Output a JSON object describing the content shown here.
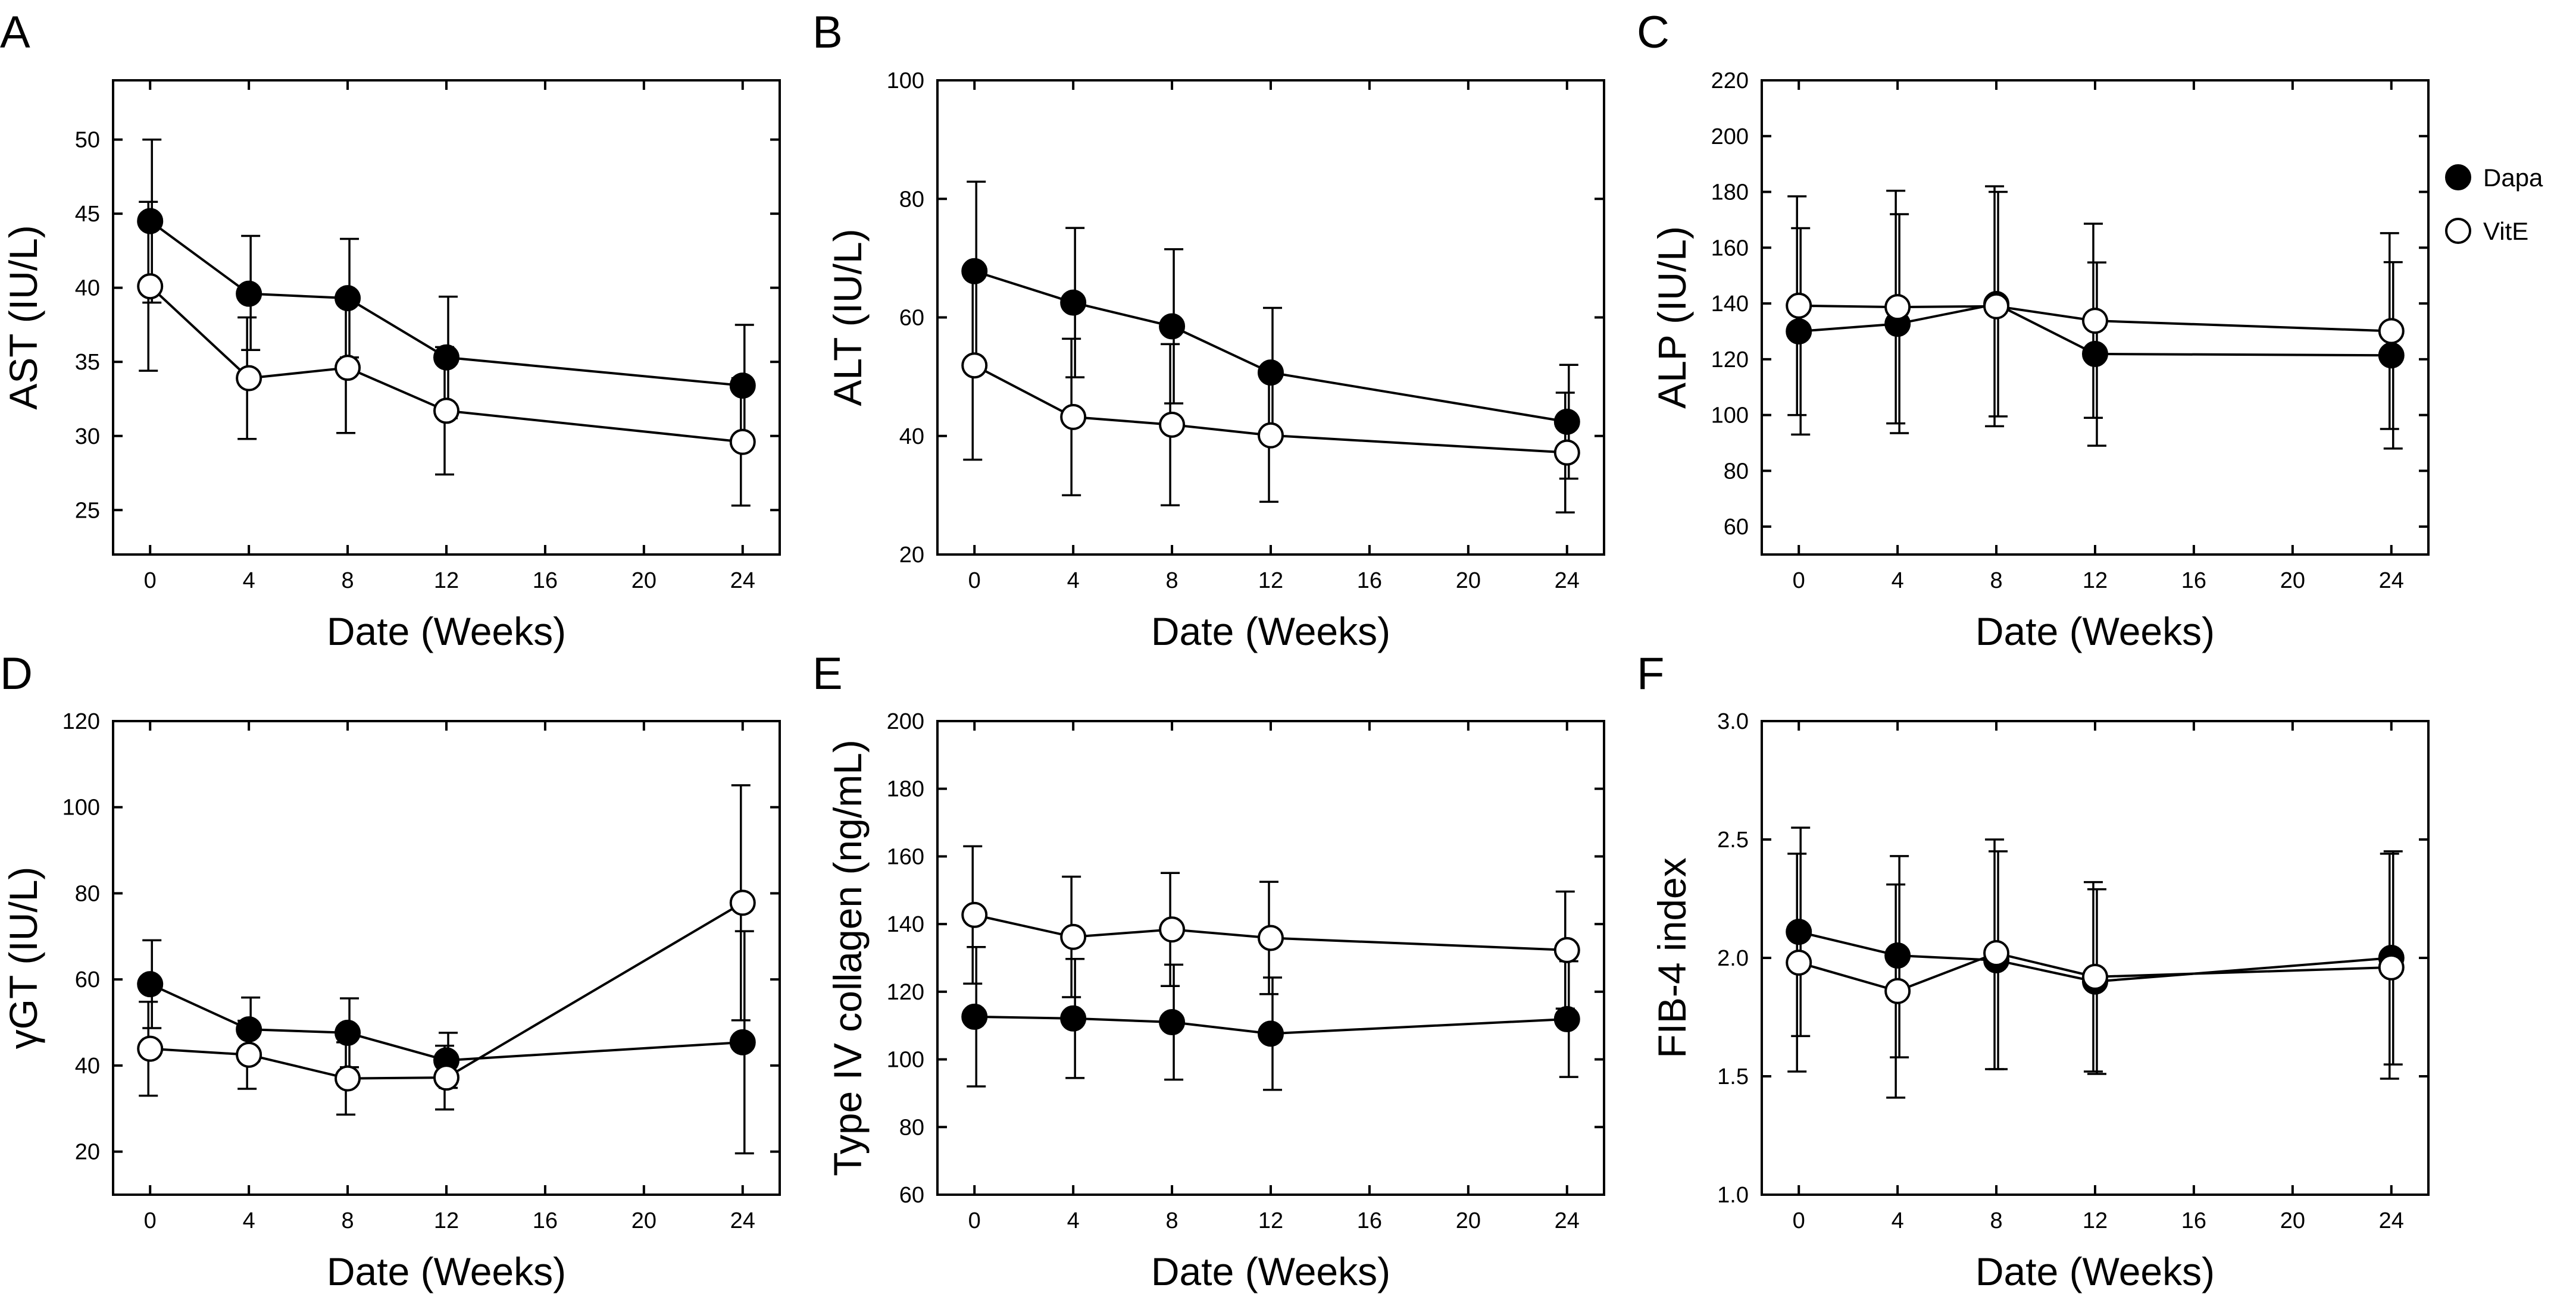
{
  "figure": {
    "legend": [
      {
        "name": "Dapa",
        "marker": "filled"
      },
      {
        "name": "VitE",
        "marker": "open"
      }
    ],
    "colors": {
      "ink": "#000000",
      "background": "#ffffff"
    }
  },
  "chart_data": [
    {
      "panel": "A",
      "type": "line",
      "xlabel": "Date (Weeks)",
      "ylabel": "AST (IU/L)",
      "xlim": [
        -1.5,
        25.5
      ],
      "xticks": [
        0,
        4,
        8,
        12,
        16,
        20,
        24
      ],
      "ylim": [
        22,
        54
      ],
      "yticks": [
        25,
        30,
        35,
        40,
        45,
        50
      ],
      "x": [
        0,
        4,
        8,
        12,
        24
      ],
      "series": [
        {
          "name": "Dapa",
          "marker": "filled",
          "values": [
            44.5,
            39.6,
            39.3,
            35.3,
            33.4
          ],
          "err_low": [
            39.0,
            35.8,
            35.3,
            31.2,
            29.3
          ],
          "err_high": [
            50.0,
            43.5,
            43.3,
            39.4,
            37.5
          ]
        },
        {
          "name": "VitE",
          "marker": "open",
          "values": [
            40.1,
            33.9,
            34.6,
            31.7,
            29.6
          ],
          "err_low": [
            34.4,
            29.8,
            30.2,
            27.4,
            25.3
          ],
          "err_high": [
            45.8,
            38.0,
            39.0,
            36.0,
            33.9
          ]
        }
      ]
    },
    {
      "panel": "B",
      "type": "line",
      "xlabel": "Date (Weeks)",
      "ylabel": "ALT (IU/L)",
      "xlim": [
        -1.5,
        25.5
      ],
      "xticks": [
        0,
        4,
        8,
        12,
        16,
        20,
        24
      ],
      "ylim": [
        20,
        100
      ],
      "yticks": [
        20,
        40,
        60,
        80,
        100
      ],
      "x": [
        0,
        4,
        8,
        12,
        24
      ],
      "series": [
        {
          "name": "Dapa",
          "marker": "filled",
          "values": [
            67.8,
            62.5,
            58.5,
            50.7,
            42.4
          ],
          "err_low": [
            52.7,
            49.9,
            45.5,
            39.8,
            32.8
          ],
          "err_high": [
            82.9,
            75.1,
            71.5,
            61.6,
            52.0
          ]
        },
        {
          "name": "VitE",
          "marker": "open",
          "values": [
            51.9,
            43.2,
            41.9,
            40.1,
            37.2
          ],
          "err_low": [
            36.0,
            30.0,
            28.3,
            28.9,
            27.1
          ],
          "err_high": [
            67.8,
            56.4,
            55.5,
            51.3,
            47.3
          ]
        }
      ]
    },
    {
      "panel": "C",
      "type": "line",
      "xlabel": "Date (Weeks)",
      "ylabel": "ALP (IU/L)",
      "xlim": [
        -1.5,
        25.5
      ],
      "xticks": [
        0,
        4,
        8,
        12,
        16,
        20,
        24
      ],
      "ylim": [
        50,
        220
      ],
      "yticks": [
        60,
        80,
        100,
        120,
        140,
        160,
        180,
        200,
        220
      ],
      "x": [
        0,
        4,
        8,
        12,
        24
      ],
      "series": [
        {
          "name": "Dapa",
          "marker": "filled",
          "values": [
            130,
            132.7,
            139.8,
            121.9,
            121.4
          ],
          "err_low": [
            93.0,
            93.5,
            99.5,
            89.0,
            88.0
          ],
          "err_high": [
            167.0,
            172.0,
            180.0,
            154.7,
            154.8
          ]
        },
        {
          "name": "VitE",
          "marker": "open",
          "values": [
            139.2,
            138.7,
            139.0,
            133.8,
            130.1
          ],
          "err_low": [
            100.0,
            97.0,
            96.0,
            99.0,
            95.0
          ],
          "err_high": [
            178.4,
            180.4,
            182.0,
            168.6,
            165.2
          ]
        }
      ]
    },
    {
      "panel": "D",
      "type": "line",
      "xlabel": "Date (Weeks)",
      "ylabel": "γGT (IU/L)",
      "xlim": [
        -1.5,
        25.5
      ],
      "xticks": [
        0,
        4,
        8,
        12,
        16,
        20,
        24
      ],
      "ylim": [
        10,
        120
      ],
      "yticks": [
        20,
        40,
        60,
        80,
        100,
        120
      ],
      "x": [
        0,
        4,
        8,
        12,
        24
      ],
      "series": [
        {
          "name": "Dapa",
          "marker": "filled",
          "values": [
            58.9,
            48.4,
            47.6,
            41.2,
            45.4
          ],
          "err_low": [
            48.7,
            41.0,
            39.6,
            34.8,
            19.6
          ],
          "err_high": [
            69.1,
            55.8,
            55.6,
            47.6,
            71.2
          ]
        },
        {
          "name": "VitE",
          "marker": "open",
          "values": [
            43.9,
            42.5,
            37.0,
            37.2,
            77.8
          ],
          "err_low": [
            33.0,
            34.6,
            28.6,
            29.8,
            50.5
          ],
          "err_high": [
            54.8,
            50.4,
            45.4,
            44.6,
            105.1
          ]
        }
      ]
    },
    {
      "panel": "E",
      "type": "line",
      "xlabel": "Date (Weeks)",
      "ylabel": "Type IV collagen (ng/mL)",
      "xlim": [
        -1.5,
        25.5
      ],
      "xticks": [
        0,
        4,
        8,
        12,
        16,
        20,
        24
      ],
      "ylim": [
        60,
        200
      ],
      "yticks": [
        60,
        80,
        100,
        120,
        140,
        160,
        180,
        200
      ],
      "x": [
        0,
        4,
        8,
        12,
        24
      ],
      "series": [
        {
          "name": "Dapa",
          "marker": "filled",
          "values": [
            112.6,
            112.1,
            111.0,
            107.6,
            111.9
          ],
          "err_low": [
            92.0,
            94.5,
            94.0,
            91.0,
            94.8
          ],
          "err_high": [
            133.2,
            129.7,
            128.0,
            124.2,
            129.0
          ]
        },
        {
          "name": "VitE",
          "marker": "open",
          "values": [
            142.7,
            136.2,
            138.4,
            135.9,
            132.3
          ],
          "err_low": [
            122.4,
            118.4,
            121.7,
            119.3,
            115.0
          ],
          "err_high": [
            163.0,
            154.0,
            155.1,
            152.5,
            149.6
          ]
        }
      ]
    },
    {
      "panel": "F",
      "type": "line",
      "xlabel": "Date (Weeks)",
      "ylabel": "FIB-4 index",
      "xlim": [
        -1.5,
        25.5
      ],
      "xticks": [
        0,
        4,
        8,
        12,
        16,
        20,
        24
      ],
      "ylim": [
        1.0,
        3.0
      ],
      "yticks": [
        1.0,
        1.5,
        2.0,
        2.5,
        3.0
      ],
      "yticklabels": [
        "1.0",
        "1.5",
        "2.0",
        "2.5",
        "3.0"
      ],
      "x": [
        0,
        4,
        8,
        12,
        24
      ],
      "series": [
        {
          "name": "Dapa",
          "marker": "filled",
          "values": [
            2.11,
            2.01,
            1.99,
            1.9,
            2.0
          ],
          "err_low": [
            1.67,
            1.58,
            1.53,
            1.51,
            1.55
          ],
          "err_high": [
            2.55,
            2.43,
            2.45,
            2.29,
            2.45
          ]
        },
        {
          "name": "VitE",
          "marker": "open",
          "values": [
            1.98,
            1.86,
            2.02,
            1.92,
            1.96
          ],
          "err_low": [
            1.52,
            1.41,
            1.53,
            1.52,
            1.49
          ],
          "err_high": [
            2.44,
            2.31,
            2.5,
            2.32,
            2.44
          ]
        }
      ]
    }
  ]
}
